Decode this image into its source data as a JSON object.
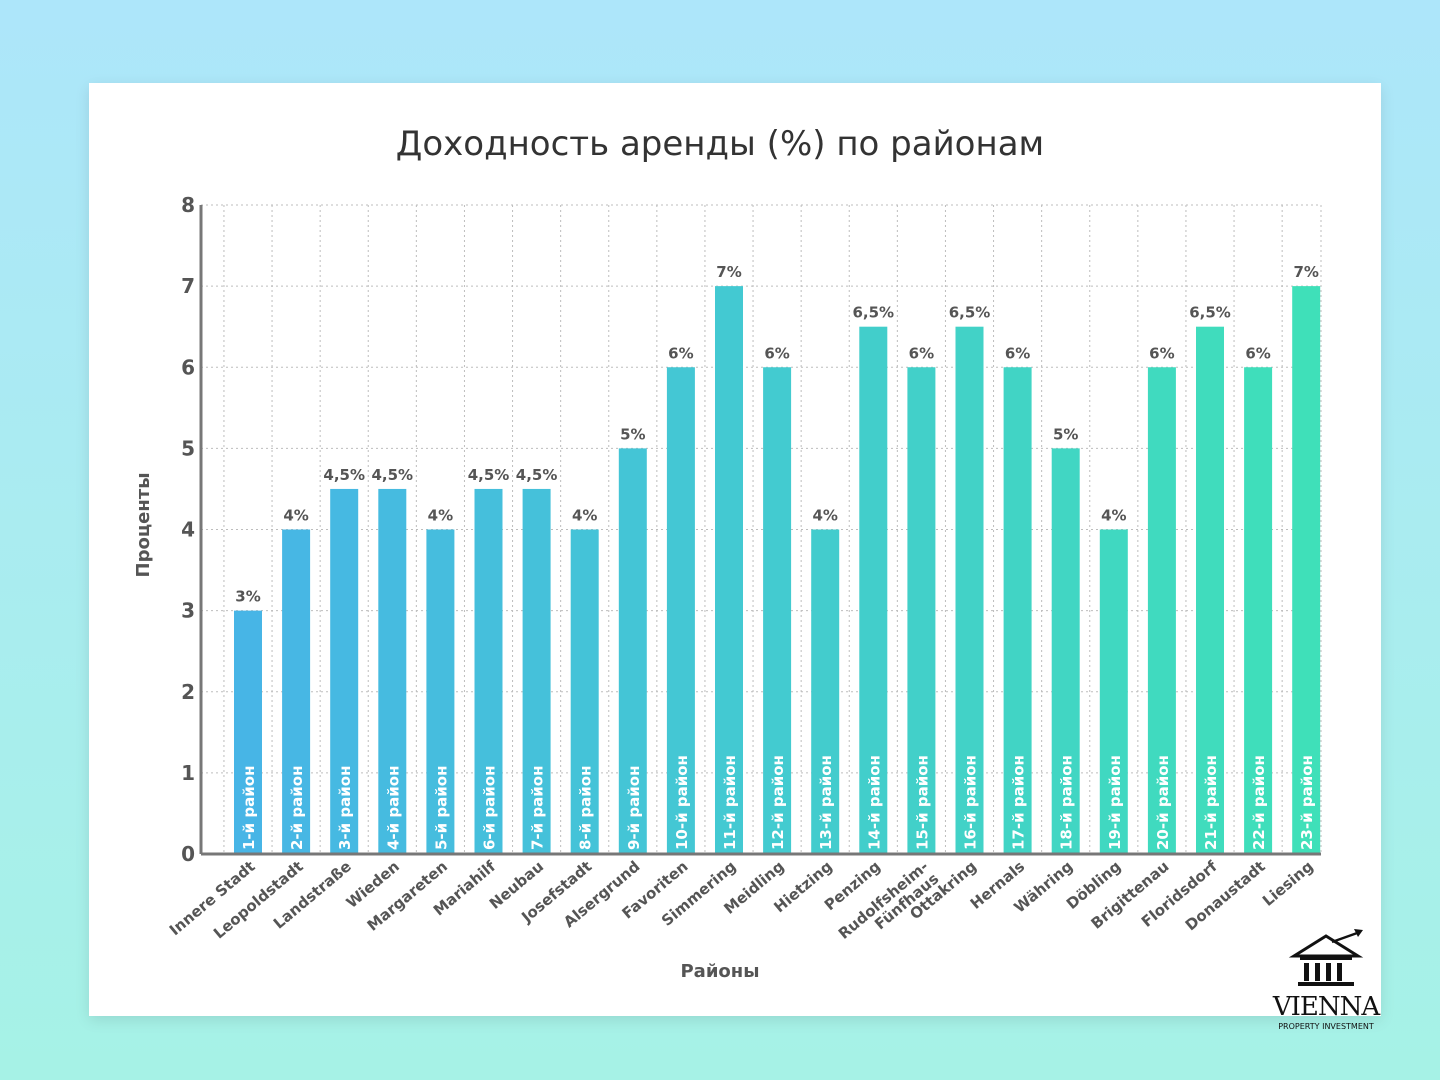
{
  "chart_data": {
    "type": "bar",
    "title": "Доходность аренды (%) по районам",
    "xlabel": "Районы",
    "ylabel": "Проценты",
    "ylim": [
      0,
      8
    ],
    "yticks": [
      0,
      1,
      2,
      3,
      4,
      5,
      6,
      7,
      8
    ],
    "grid": true,
    "categories": [
      "Innere Stadt",
      "Leopoldstadt",
      "Landstraße",
      "Wieden",
      "Margareten",
      "Mariahilf",
      "Neubau",
      "Josefstadt",
      "Alsergrund",
      "Favoriten",
      "Simmering",
      "Meidling",
      "Hietzing",
      "Penzing",
      "Rudolfsheim-\nFünfhaus",
      "Ottakring",
      "Hernals",
      "Währing",
      "Döbling",
      "Brigittenau",
      "Floridsdorf",
      "Donaustadt",
      "Liesing"
    ],
    "district_labels": [
      "1-й район",
      "2-й район",
      "3-й район",
      "4-й район",
      "5-й район",
      "6-й район",
      "7-й район",
      "8-й район",
      "9-й район",
      "10-й район",
      "11-й район",
      "12-й район",
      "13-й район",
      "14-й район",
      "15-й район",
      "16-й район",
      "17-й район",
      "18-й район",
      "19-й район",
      "20-й район",
      "21-й район",
      "22-й район",
      "23-й район"
    ],
    "values": [
      3,
      4,
      4.5,
      4.5,
      4,
      4.5,
      4.5,
      4,
      5,
      6,
      7,
      6,
      4,
      6.5,
      6,
      6.5,
      6,
      5,
      4,
      6,
      6.5,
      6,
      7
    ],
    "value_labels": [
      "3%",
      "4%",
      "4,5%",
      "4,5%",
      "4%",
      "4,5%",
      "4,5%",
      "4%",
      "5%",
      "6%",
      "7%",
      "6%",
      "4%",
      "6,5%",
      "6%",
      "6,5%",
      "6%",
      "5%",
      "4%",
      "6%",
      "6,5%",
      "6%",
      "7%"
    ],
    "colors": {
      "start": "#47b5e6",
      "end": "#3fe0b9"
    }
  },
  "logo": {
    "name": "VIENNA",
    "subtitle": "PROPERTY INVESTMENT",
    "icon": "building-columns-arrow-icon"
  }
}
